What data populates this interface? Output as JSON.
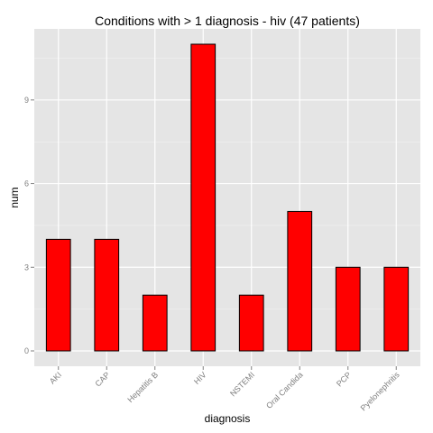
{
  "chart_data": {
    "type": "bar",
    "title": "Conditions with > 1 diagnosis - hiv (47 patients)",
    "xlabel": "diagnosis",
    "ylabel": "num",
    "categories": [
      "AKI",
      "CAP",
      "Hepatitis B",
      "HIV",
      "NSTEMI",
      "Oral Candida",
      "PCP",
      "Pyelonephritis"
    ],
    "values": [
      4,
      4,
      2,
      11,
      2,
      5,
      3,
      3
    ],
    "y_ticks": [
      0,
      3,
      6,
      9
    ],
    "ylim": [
      -0.55,
      11.55
    ],
    "grid": true,
    "bar_fill": "#ff0000",
    "bar_stroke": "#000000",
    "panel_background": "#e5e5e5",
    "grid_color": "#ffffff"
  }
}
